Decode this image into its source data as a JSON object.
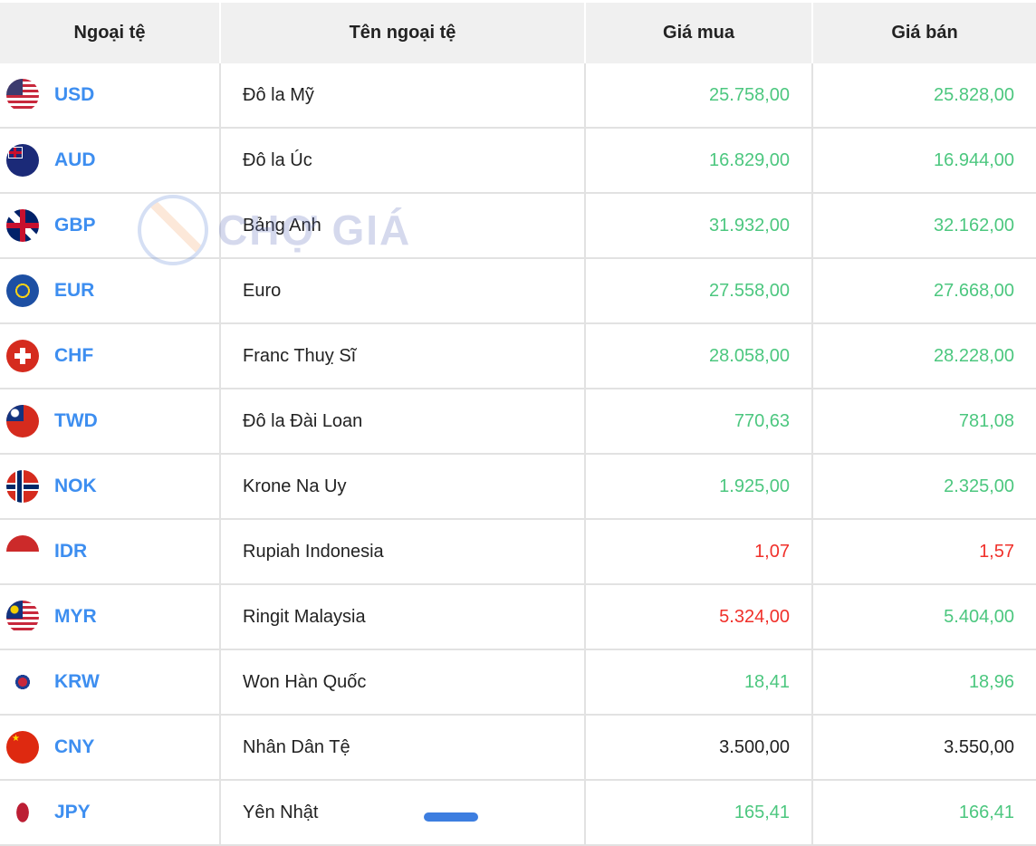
{
  "table": {
    "headers": [
      "Ngoại tệ",
      "Tên ngoại tệ",
      "Giá mua",
      "Giá bán"
    ],
    "rows": [
      {
        "code": "USD",
        "name": "Đô la Mỹ",
        "buy": "25.758,00",
        "sell": "25.828,00",
        "buy_trend": "up",
        "sell_trend": "up",
        "flag": "us-flag-icon"
      },
      {
        "code": "AUD",
        "name": "Đô la Úc",
        "buy": "16.829,00",
        "sell": "16.944,00",
        "buy_trend": "up",
        "sell_trend": "up",
        "flag": "au-flag-icon"
      },
      {
        "code": "GBP",
        "name": "Bảng Anh",
        "buy": "31.932,00",
        "sell": "32.162,00",
        "buy_trend": "up",
        "sell_trend": "up",
        "flag": "gb-flag-icon"
      },
      {
        "code": "EUR",
        "name": "Euro",
        "buy": "27.558,00",
        "sell": "27.668,00",
        "buy_trend": "up",
        "sell_trend": "up",
        "flag": "eu-flag-icon"
      },
      {
        "code": "CHF",
        "name": "Franc Thuỵ Sĩ",
        "buy": "28.058,00",
        "sell": "28.228,00",
        "buy_trend": "up",
        "sell_trend": "up",
        "flag": "ch-flag-icon"
      },
      {
        "code": "TWD",
        "name": "Đô la Đài Loan",
        "buy": "770,63",
        "sell": "781,08",
        "buy_trend": "up",
        "sell_trend": "up",
        "flag": "tw-flag-icon"
      },
      {
        "code": "NOK",
        "name": "Krone Na Uy",
        "buy": "1.925,00",
        "sell": "2.325,00",
        "buy_trend": "up",
        "sell_trend": "up",
        "flag": "no-flag-icon"
      },
      {
        "code": "IDR",
        "name": "Rupiah Indonesia",
        "buy": "1,07",
        "sell": "1,57",
        "buy_trend": "down",
        "sell_trend": "down",
        "flag": "id-flag-icon"
      },
      {
        "code": "MYR",
        "name": "Ringit Malaysia",
        "buy": "5.324,00",
        "sell": "5.404,00",
        "buy_trend": "down",
        "sell_trend": "up",
        "flag": "my-flag-icon"
      },
      {
        "code": "KRW",
        "name": "Won Hàn Quốc",
        "buy": "18,41",
        "sell": "18,96",
        "buy_trend": "up",
        "sell_trend": "up",
        "flag": "kr-flag-icon"
      },
      {
        "code": "CNY",
        "name": "Nhân Dân Tệ",
        "buy": "3.500,00",
        "sell": "3.550,00",
        "buy_trend": "same",
        "sell_trend": "same",
        "flag": "cn-flag-icon"
      },
      {
        "code": "JPY",
        "name": "Yên Nhật",
        "buy": "165,41",
        "sell": "166,41",
        "buy_trend": "up",
        "sell_trend": "up",
        "flag": "jp-flag-icon"
      }
    ]
  },
  "colors": {
    "code": "#3d8ef0",
    "up": "#4cc77f",
    "down": "#f0302a",
    "same": "#222222",
    "header_bg": "#f0f0f0"
  },
  "watermark": {
    "text": "CHỢ GIÁ"
  }
}
